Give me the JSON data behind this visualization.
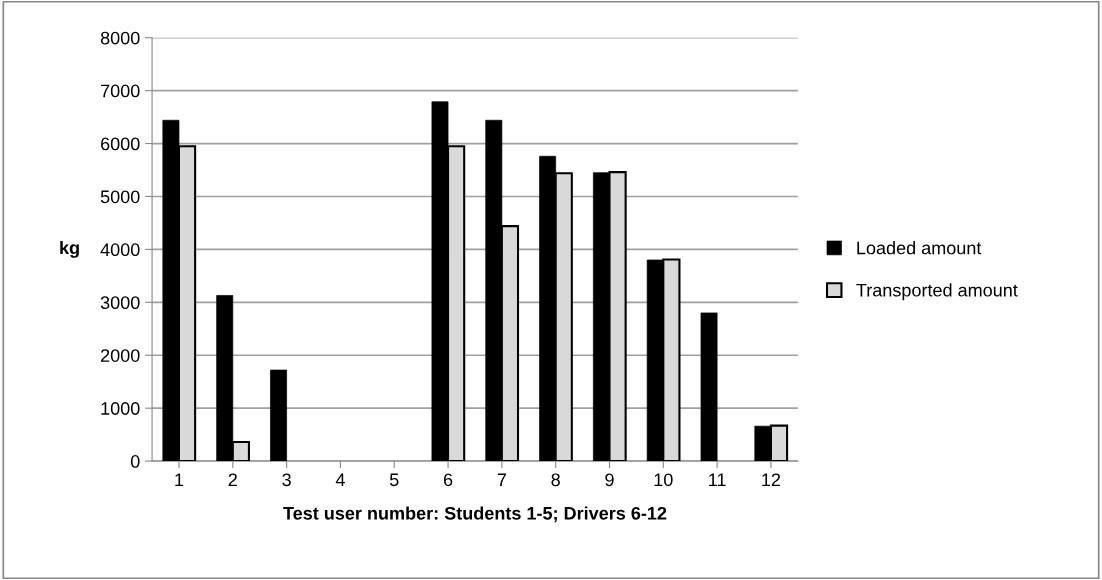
{
  "chart_data": {
    "type": "bar",
    "xlabel": "Test user number: Students 1-5; Drivers 6-12",
    "ylabel": "kg",
    "categories": [
      "1",
      "2",
      "3",
      "4",
      "5",
      "6",
      "7",
      "8",
      "9",
      "10",
      "11",
      "12"
    ],
    "series": [
      {
        "name": "Loaded amount",
        "color": "#000000",
        "values": [
          6440,
          3130,
          1720,
          null,
          null,
          6790,
          6440,
          5760,
          5450,
          3800,
          2800,
          660
        ]
      },
      {
        "name": "Transported amount",
        "color": "#d9d9d9",
        "values": [
          5950,
          360,
          null,
          null,
          null,
          5950,
          4440,
          5440,
          5460,
          3810,
          null,
          670
        ]
      }
    ],
    "ylim": [
      0,
      8000
    ],
    "yticks": [
      0,
      1000,
      2000,
      3000,
      4000,
      5000,
      6000,
      7000,
      8000
    ],
    "grid": "y",
    "legend": "right"
  }
}
